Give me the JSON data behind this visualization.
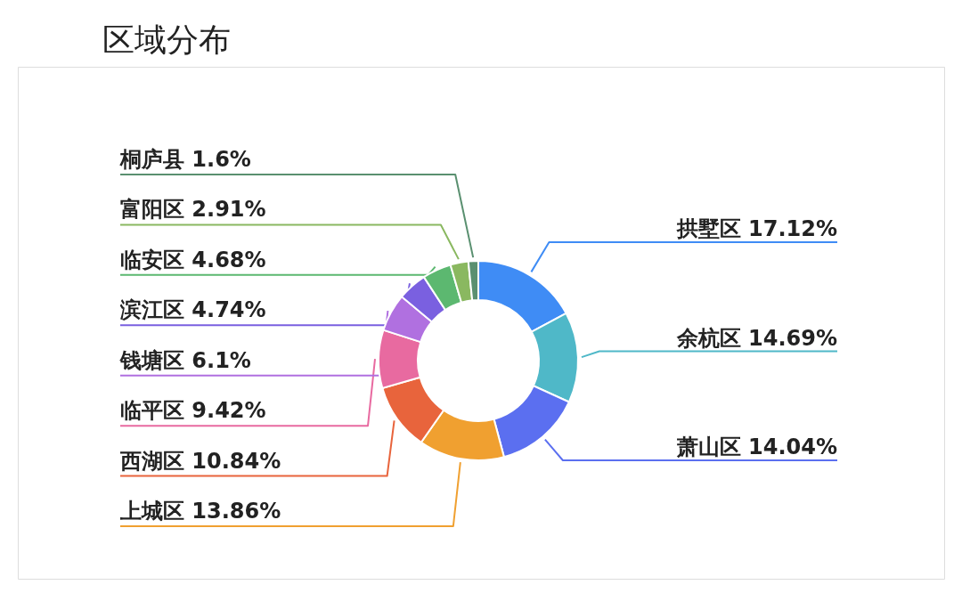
{
  "chart_data": {
    "type": "donut",
    "title": "区域分布",
    "categories": [
      "拱墅区",
      "余杭区",
      "萧山区",
      "上城区",
      "西湖区",
      "临平区",
      "钱塘区",
      "滨江区",
      "临安区",
      "富阳区",
      "桐庐县"
    ],
    "values": [
      17.12,
      14.69,
      14.04,
      13.86,
      10.84,
      9.42,
      6.1,
      4.74,
      4.68,
      2.91,
      1.6
    ],
    "colors": [
      "#3f8cf5",
      "#4fb8c8",
      "#5b6ff0",
      "#f0a030",
      "#e8643c",
      "#e86aa0",
      "#b070e0",
      "#7a60e0",
      "#5cb870",
      "#8ab860",
      "#5a9070"
    ],
    "value_labels": [
      "17.12%",
      "14.69%",
      "14.04%",
      "13.86%",
      "10.84%",
      "9.42%",
      "6.1%",
      "4.74%",
      "4.68%",
      "2.91%",
      "1.6%"
    ]
  }
}
